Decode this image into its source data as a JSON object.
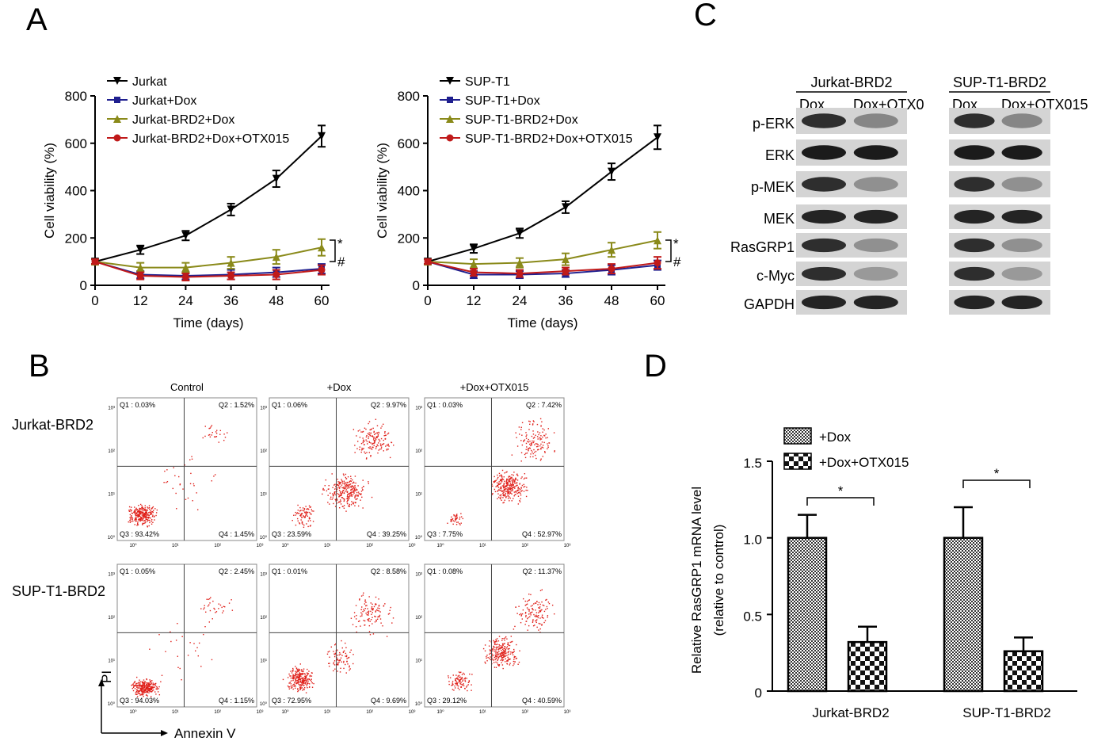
{
  "panels": {
    "A": "A",
    "B": "B",
    "C": "C",
    "D": "D"
  },
  "viability": {
    "ylabel": "Cell viability (%)",
    "xlabel": "Time (days)",
    "yticks": [
      "0",
      "200",
      "400",
      "600",
      "800"
    ],
    "xticks": [
      "0",
      "12",
      "24",
      "36",
      "48",
      "60"
    ],
    "sig": [
      "*",
      "#"
    ]
  },
  "chart_data": [
    {
      "type": "line",
      "title": "",
      "xlabel": "Time (days)",
      "ylabel": "Cell viability (%)",
      "xlim": [
        0,
        60
      ],
      "ylim": [
        0,
        800
      ],
      "x": [
        0,
        12,
        24,
        36,
        48,
        60
      ],
      "legend_position": "top-left",
      "series": [
        {
          "name": "Jurkat",
          "color": "#000000",
          "marker": "triangle-down",
          "values": [
            100,
            150,
            210,
            320,
            450,
            630
          ],
          "err": [
            10,
            18,
            20,
            25,
            35,
            45
          ]
        },
        {
          "name": "Jurkat+Dox",
          "color": "#1f1f8f",
          "marker": "square",
          "values": [
            100,
            45,
            40,
            45,
            55,
            70
          ],
          "err": [
            10,
            15,
            15,
            20,
            20,
            20
          ]
        },
        {
          "name": "Jurkat-BRD2+Dox",
          "color": "#8a8a1a",
          "marker": "triangle-up",
          "values": [
            100,
            75,
            75,
            95,
            120,
            160
          ],
          "err": [
            10,
            20,
            20,
            25,
            30,
            35
          ]
        },
        {
          "name": "Jurkat-BRD2+Dox+OTX015",
          "color": "#c01a1a",
          "marker": "circle",
          "values": [
            100,
            40,
            35,
            40,
            45,
            65
          ],
          "err": [
            10,
            15,
            15,
            15,
            20,
            20
          ]
        }
      ]
    },
    {
      "type": "line",
      "title": "",
      "xlabel": "Time (days)",
      "ylabel": "Cell viability (%)",
      "xlim": [
        0,
        60
      ],
      "ylim": [
        0,
        800
      ],
      "x": [
        0,
        12,
        24,
        36,
        48,
        60
      ],
      "legend_position": "top-left",
      "series": [
        {
          "name": "SUP-T1",
          "color": "#000000",
          "marker": "triangle-down",
          "values": [
            100,
            155,
            220,
            330,
            480,
            625
          ],
          "err": [
            10,
            18,
            20,
            25,
            35,
            50
          ]
        },
        {
          "name": "SUP-T1+Dox",
          "color": "#1f1f8f",
          "marker": "square",
          "values": [
            100,
            45,
            45,
            50,
            65,
            85
          ],
          "err": [
            10,
            15,
            15,
            15,
            20,
            20
          ]
        },
        {
          "name": "SUP-T1-BRD2+Dox",
          "color": "#8a8a1a",
          "marker": "triangle-up",
          "values": [
            100,
            90,
            95,
            110,
            150,
            190
          ],
          "err": [
            10,
            20,
            20,
            25,
            30,
            35
          ]
        },
        {
          "name": "SUP-T1-BRD2+Dox+OTX015",
          "color": "#c01a1a",
          "marker": "circle",
          "values": [
            100,
            55,
            50,
            60,
            70,
            95
          ],
          "err": [
            10,
            15,
            15,
            15,
            20,
            25
          ]
        }
      ]
    },
    {
      "type": "bar",
      "title": "",
      "ylabel": "Relative RasGRP1 mRNA level\n(relative to control)",
      "ylabel_lines": [
        "Relative RasGRP1 mRNA level",
        "(relative to control)"
      ],
      "categories": [
        "Jurkat-BRD2",
        "SUP-T1-BRD2"
      ],
      "ylim": [
        0,
        1.5
      ],
      "yticks": [
        "0",
        "0.5",
        "1.0",
        "1.5"
      ],
      "legend_position": "top-left",
      "sig": [
        "*",
        "*"
      ],
      "series": [
        {
          "name": "+Dox",
          "values": [
            1.0,
            1.0
          ],
          "err": [
            0.15,
            0.2
          ]
        },
        {
          "name": "+Dox+OTX015",
          "values": [
            0.32,
            0.26
          ],
          "err": [
            0.1,
            0.09
          ]
        }
      ]
    }
  ],
  "flow": {
    "columns": [
      "Control",
      "+Dox",
      "+Dox+OTX015"
    ],
    "rows": [
      "Jurkat-BRD2",
      "SUP-T1-BRD2"
    ],
    "xaxis": "Annexin V",
    "yaxis": "PI",
    "tick_labels": [
      "10⁰",
      "10¹",
      "10²",
      "10³"
    ],
    "quadrants": [
      [
        [
          "Q1 : 0.03%",
          "Q2 : 1.52%",
          "Q3 : 93.42%",
          "Q4 : 1.45%"
        ],
        [
          "Q1 : 0.06%",
          "Q2 : 9.97%",
          "Q3 : 23.59%",
          "Q4 : 39.25%"
        ],
        [
          "Q1 : 0.03%",
          "Q2 : 7.42%",
          "Q3 : 7.75%",
          "Q4 : 52.97%"
        ]
      ],
      [
        [
          "Q1 : 0.05%",
          "Q2 : 2.45%",
          "Q3 : 94.03%",
          "Q4 : 1.15%"
        ],
        [
          "Q1 : 0.01%",
          "Q2 : 8.58%",
          "Q3 : 72.95%",
          "Q4 : 9.69%"
        ],
        [
          "Q1 : 0.08%",
          "Q2 : 11.37%",
          "Q3 : 29.12%",
          "Q4 : 40.59%"
        ]
      ]
    ]
  },
  "western": {
    "groups": [
      {
        "title": "Jurkat-BRD2",
        "lanes": [
          "Dox",
          "Dox+OTX0"
        ]
      },
      {
        "title": "SUP-T1-BRD2",
        "lanes": [
          "Dox",
          "Dox+OTX015"
        ]
      }
    ],
    "proteins": [
      "p-ERK",
      "ERK",
      "p-MEK",
      "MEK",
      "RasGRP1",
      "c-Myc",
      "GAPDH"
    ]
  }
}
